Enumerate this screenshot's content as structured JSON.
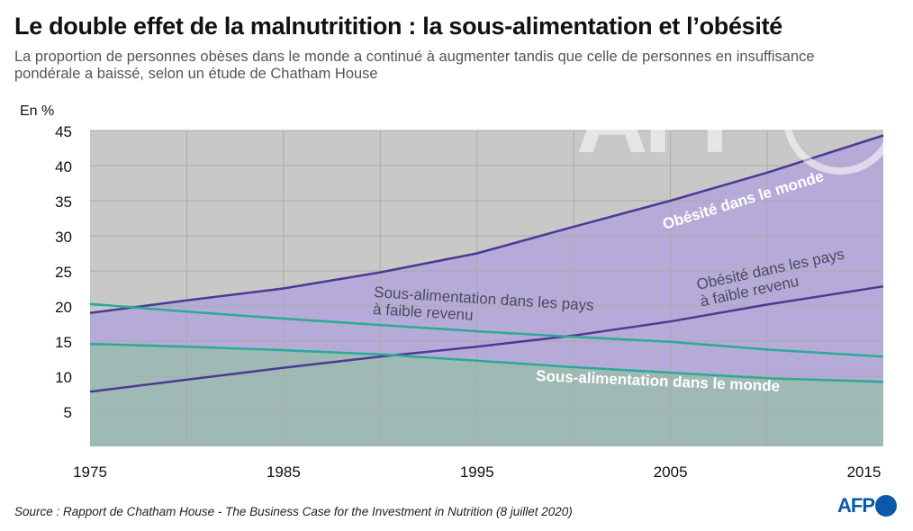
{
  "title": "Le double effet de la malnutritition : la sous-alimentation et l’obésité",
  "subtitle": "La proportion de personnes obèses dans le monde a continué à augmenter tandis que celle de personnes en insuffisance pondérale a baissé, selon un étude de Chatham House",
  "source": "Source : Rapport de Chatham House - The Business Case for the Investment in Nutrition (8 juillet 2020)",
  "logo": "AFP",
  "watermark": "AFP",
  "colors": {
    "plot_bg": "#c8c8c8",
    "obesity_fill": "#b6abd8",
    "undernutrition_fill": "#9fbab4",
    "obesity_line": "#4b3a92",
    "undernutrition_line": "#2aaa96",
    "grid": "#aaaaaa",
    "accent": "#0a5aa8"
  },
  "chart_data": {
    "type": "line",
    "ylabel": "En %",
    "ylim": [
      0,
      45
    ],
    "xlim": [
      1975,
      2016
    ],
    "yticks": [
      "5",
      "10",
      "15",
      "20",
      "25",
      "30",
      "35",
      "40",
      "45"
    ],
    "xticks": [
      "1975",
      "1985",
      "1995",
      "2005",
      "2015"
    ],
    "grid": true,
    "x": [
      1975,
      1980,
      1985,
      1990,
      1995,
      2000,
      2005,
      2010,
      2016
    ],
    "series": [
      {
        "name": "Obésité dans le monde",
        "values": [
          19,
          20.8,
          22.5,
          24.8,
          27.5,
          31.3,
          35,
          39,
          44.3
        ]
      },
      {
        "name": "Obésité dans les pays à faible revenu",
        "values": [
          7.8,
          9.5,
          11.2,
          12.8,
          14.2,
          15.8,
          17.8,
          20.2,
          22.8
        ]
      },
      {
        "name": "Sous-alimentation dans les pays à faible revenu",
        "values": [
          20.3,
          19.2,
          18.2,
          17.3,
          16.4,
          15.6,
          14.9,
          13.8,
          12.8
        ]
      },
      {
        "name": "Sous-alimentation dans le monde",
        "values": [
          14.6,
          14.2,
          13.7,
          13.1,
          12.2,
          11.3,
          10.5,
          9.7,
          9.2
        ]
      }
    ],
    "annotations": [
      {
        "lines": [
          "Obésité dans le monde"
        ]
      },
      {
        "lines": [
          "Obésité dans les pays",
          "à faible revenu"
        ]
      },
      {
        "lines": [
          "Sous-alimentation dans les pays",
          "à faible revenu"
        ]
      },
      {
        "lines": [
          "Sous-alimentation dans le monde"
        ]
      }
    ]
  }
}
